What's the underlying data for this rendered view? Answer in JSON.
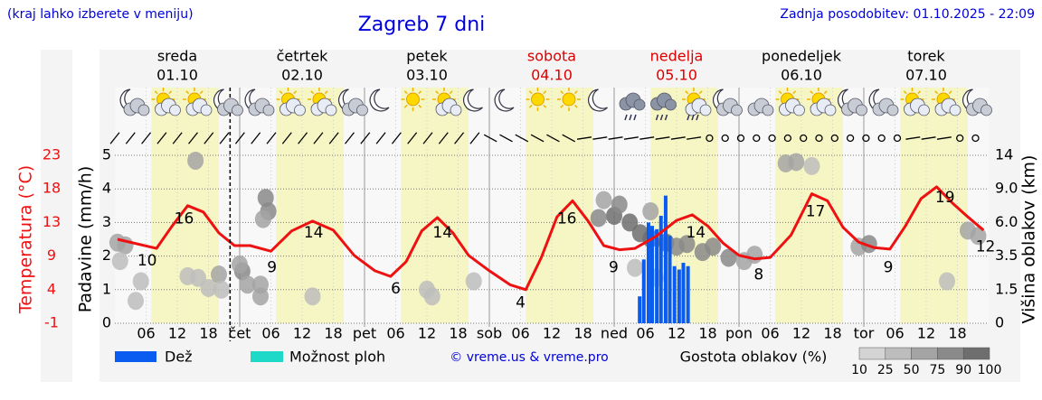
{
  "header": {
    "note": "(kraj lahko izberete v meniju)",
    "title": "Zagreb 7 dni",
    "updated": "Zadnja posodobitev: 01.10.2025 - 22:09"
  },
  "chart_data": {
    "type": "meteogram",
    "days": [
      {
        "name": "sreda",
        "date": "01.10",
        "color": "#000000"
      },
      {
        "name": "četrtek",
        "date": "02.10",
        "color": "#000000"
      },
      {
        "name": "petek",
        "date": "03.10",
        "color": "#000000"
      },
      {
        "name": "sobota",
        "date": "04.10",
        "color": "#dd0000"
      },
      {
        "name": "nedelja",
        "date": "05.10",
        "color": "#dd0000"
      },
      {
        "name": "ponedeljek",
        "date": "06.10",
        "color": "#000000"
      },
      {
        "name": "torek",
        "date": "07.10",
        "color": "#000000"
      }
    ],
    "xlim": [
      0,
      168
    ],
    "xticks": [
      {
        "value": 6,
        "label": "06"
      },
      {
        "value": 12,
        "label": "12"
      },
      {
        "value": 18,
        "label": "18"
      },
      {
        "value": 24,
        "label": "čet"
      },
      {
        "value": 30,
        "label": "06"
      },
      {
        "value": 36,
        "label": "12"
      },
      {
        "value": 42,
        "label": "18"
      },
      {
        "value": 48,
        "label": "pet"
      },
      {
        "value": 54,
        "label": "06"
      },
      {
        "value": 60,
        "label": "12"
      },
      {
        "value": 66,
        "label": "18"
      },
      {
        "value": 72,
        "label": "sob"
      },
      {
        "value": 78,
        "label": "06"
      },
      {
        "value": 84,
        "label": "12"
      },
      {
        "value": 90,
        "label": "18"
      },
      {
        "value": 96,
        "label": "ned"
      },
      {
        "value": 102,
        "label": "06"
      },
      {
        "value": 108,
        "label": "12"
      },
      {
        "value": 114,
        "label": "18"
      },
      {
        "value": 120,
        "label": "pon"
      },
      {
        "value": 126,
        "label": "06"
      },
      {
        "value": 132,
        "label": "12"
      },
      {
        "value": 138,
        "label": "18"
      },
      {
        "value": 144,
        "label": "tor"
      },
      {
        "value": 150,
        "label": "06"
      },
      {
        "value": 156,
        "label": "12"
      },
      {
        "value": 162,
        "label": "18"
      }
    ],
    "ylabel": "Padavine (mm/h)",
    "ylim": [
      0,
      5
    ],
    "yticks": [
      0,
      1,
      2,
      3,
      4,
      5
    ],
    "grid": true,
    "y2label": "Višina oblakov (km)",
    "y2lim": [
      0,
      14
    ],
    "y2ticks": [
      0,
      1.5,
      3.5,
      {
        "value": 6,
        "label": "6.0"
      },
      {
        "value": 9,
        "label": "9.0"
      },
      14
    ],
    "daylight": [
      [
        7,
        20
      ],
      [
        31,
        44
      ],
      [
        55,
        68
      ],
      [
        79,
        92
      ],
      [
        103,
        116
      ],
      [
        127,
        140
      ],
      [
        151,
        164
      ]
    ],
    "daylight_color": "#f6f6c4",
    "now_x": 22.15,
    "temperature": {
      "label": "Temperatura (°C)",
      "color": "#ee1111",
      "ylim": [
        -1,
        23
      ],
      "yticks": [
        -1,
        {
          "value": 3.8,
          "label": "4"
        },
        {
          "value": 8.6,
          "label": "9"
        },
        {
          "value": 13.4,
          "label": "13"
        },
        {
          "value": 18.2,
          "label": "18"
        },
        23
      ],
      "x": [
        0.5,
        8,
        11,
        14,
        17,
        20,
        23,
        26,
        30,
        34,
        38,
        42,
        46,
        50,
        53,
        56,
        59,
        62,
        65,
        68,
        72,
        76,
        79,
        82,
        85,
        88,
        91,
        94,
        97,
        100,
        104,
        108,
        111,
        114,
        117,
        120,
        123,
        126,
        130,
        134,
        137,
        140,
        143,
        146,
        149,
        152,
        155,
        158,
        161,
        164,
        167
      ],
      "values": [
        11.0,
        9.7,
        12.9,
        15.8,
        14.9,
        11.9,
        10.1,
        10.1,
        9.3,
        12.2,
        13.6,
        12.3,
        8.7,
        6.5,
        5.7,
        7.8,
        12.2,
        14.1,
        11.9,
        8.7,
        6.5,
        4.5,
        3.8,
        8.4,
        14.2,
        16.5,
        13.6,
        10.1,
        9.5,
        9.7,
        11.4,
        13.7,
        14.5,
        12.9,
        10.4,
        8.7,
        8.2,
        8.4,
        11.6,
        17.5,
        16.5,
        12.7,
        10.6,
        9.8,
        9.6,
        12.9,
        16.8,
        18.5,
        16.2,
        14.2,
        12.3
      ],
      "extremes": {
        "x": [
          6.2,
          13.3,
          30.2,
          38.2,
          54,
          63,
          78,
          86.9,
          95.9,
          111.7,
          123.8,
          134.7,
          148.7,
          159.6,
          167.4
        ],
        "values": [
          10,
          16,
          9,
          14,
          6,
          14,
          4,
          16,
          9,
          14,
          8,
          17,
          9,
          19,
          12
        ]
      }
    },
    "precipitation": {
      "name": "Dež",
      "color": "#0a5cf0",
      "x": [
        100.9,
        101.7,
        102.6,
        103.3,
        104.2,
        105.0,
        105.9,
        106.7,
        107.6,
        108.5,
        109.3,
        110.2
      ],
      "values": [
        0.8,
        1.9,
        3.0,
        2.9,
        2.8,
        3.2,
        3.8,
        2.6,
        1.7,
        1.6,
        1.8,
        1.7
      ]
    },
    "showers": {
      "name": "Možnost ploh",
      "color": "#1ed8c8"
    },
    "clouds": {
      "name": "Gostota oblakov (%)",
      "scale": [
        10,
        25,
        50,
        75,
        90,
        100
      ],
      "scale_colors": [
        "#d4d4d4",
        "#bdbdbd",
        "#a4a4a4",
        "#8a8a8a",
        "#6e6e6e"
      ],
      "x": [
        0.5,
        2,
        1,
        15.5,
        5,
        4,
        14,
        16,
        18,
        20,
        20.5,
        24.5,
        25.5,
        24,
        29,
        29.5,
        28.5,
        28,
        28,
        38,
        60,
        61,
        69,
        94,
        96,
        97,
        99,
        93,
        101,
        103,
        106,
        108,
        110,
        113,
        115,
        118,
        121,
        123,
        103,
        100,
        104,
        129,
        131,
        134,
        143,
        145,
        160,
        164,
        166
      ],
      "heights": [
        4.5,
        4.3,
        3.2,
        13.2,
        2.0,
        1.0,
        2.3,
        2.2,
        1.6,
        2.4,
        1.5,
        2.6,
        1.8,
        3.0,
        8.2,
        7.0,
        6.3,
        1.2,
        1.8,
        1.2,
        1.5,
        1.2,
        2.0,
        8.0,
        6.6,
        7.6,
        6.0,
        6.4,
        5.2,
        4.8,
        4.5,
        4.2,
        4.4,
        3.8,
        4.2,
        3.4,
        3.2,
        3.6,
        7.0,
        2.8,
        2.2,
        12.8,
        13.0,
        12.4,
        4.2,
        4.4,
        2.0,
        5.4,
        5.0
      ],
      "values": [
        50,
        50,
        25,
        50,
        25,
        25,
        25,
        25,
        25,
        50,
        25,
        75,
        50,
        50,
        75,
        75,
        50,
        50,
        50,
        25,
        25,
        25,
        25,
        50,
        90,
        75,
        90,
        75,
        90,
        90,
        90,
        75,
        75,
        75,
        75,
        75,
        50,
        50,
        50,
        25,
        25,
        50,
        50,
        25,
        50,
        75,
        25,
        50,
        50
      ]
    },
    "credit": "© vreme.us & vreme.pro"
  }
}
